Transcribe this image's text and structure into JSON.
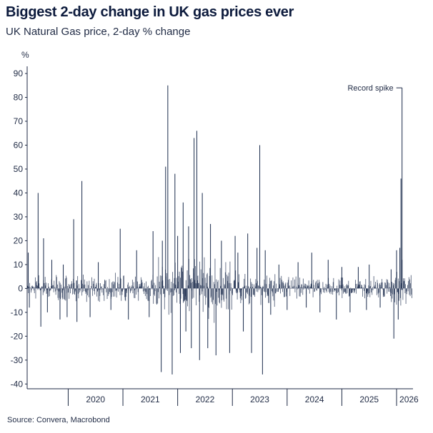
{
  "header": {
    "title": "Biggest 2-day change in UK gas prices ever",
    "subtitle": "UK Natural Gas price, 2-day % change"
  },
  "footer": {
    "source": "Source: Convera, Macrobond"
  },
  "chart_data": {
    "type": "bar",
    "title": "Biggest 2-day change in UK gas prices ever",
    "subtitle": "UK Natural Gas price, 2-day % change",
    "ylabel": "%",
    "xlabel": "",
    "ylim": [
      -42,
      93
    ],
    "xlim": [
      2019.25,
      2026.3
    ],
    "y_ticks": [
      90,
      80,
      70,
      60,
      50,
      40,
      30,
      20,
      10,
      0,
      -10,
      -20,
      -30,
      -40
    ],
    "x_ticks": [
      "2020",
      "2021",
      "2022",
      "2023",
      "2024",
      "2025",
      "2026"
    ],
    "grid": false,
    "legend": "none",
    "annotation": {
      "text": "Record spike",
      "x": 2026.1,
      "y": 84
    },
    "colors": {
      "series": "#1a2b4c",
      "axis": "#1f2a44"
    },
    "series": [
      {
        "x": [
          2019.27,
          2019.29,
          2019.45,
          2019.5,
          2019.55,
          2019.62,
          2019.7,
          2019.85,
          2019.91,
          2019.98,
          2020.1,
          2020.16,
          2020.25,
          2020.4,
          2020.55,
          2020.78,
          2020.95,
          2021.1,
          2021.25,
          2021.48,
          2021.55,
          2021.7,
          2021.72,
          2021.78,
          2021.82,
          2021.9,
          2021.95,
          2022.0,
          2022.05,
          2022.1,
          2022.15,
          2022.2,
          2022.25,
          2022.3,
          2022.35,
          2022.4,
          2022.45,
          2022.55,
          2022.6,
          2022.7,
          2022.8,
          2022.95,
          2023.05,
          2023.1,
          2023.2,
          2023.28,
          2023.35,
          2023.45,
          2023.5,
          2023.55,
          2023.6,
          2023.7,
          2023.85,
          2024.0,
          2024.2,
          2024.35,
          2024.45,
          2024.6,
          2024.75,
          2024.9,
          2025.0,
          2025.15,
          2025.3,
          2025.45,
          2025.5,
          2025.7,
          2025.9,
          2025.95,
          2026.0,
          2026.03,
          2026.06,
          2026.08,
          2026.1
        ],
        "values": [
          15,
          -8,
          40,
          -16,
          21,
          -10,
          12,
          -13,
          10,
          -12,
          29,
          -14,
          45,
          -12,
          11,
          -9,
          25,
          -13,
          16,
          -12,
          24,
          -35,
          20,
          51,
          85,
          -36,
          48,
          22,
          -27,
          36,
          -18,
          26,
          -25,
          63,
          66,
          -30,
          40,
          -25,
          27,
          -28,
          20,
          -27,
          22,
          15,
          -18,
          23,
          -27,
          17,
          60,
          -36,
          16,
          -11,
          10,
          -9,
          11,
          -8,
          15,
          -10,
          12,
          -13,
          9,
          -10,
          9,
          -9,
          10,
          -8,
          8,
          -21,
          16,
          -13,
          17,
          46,
          12
        ]
      }
    ]
  }
}
